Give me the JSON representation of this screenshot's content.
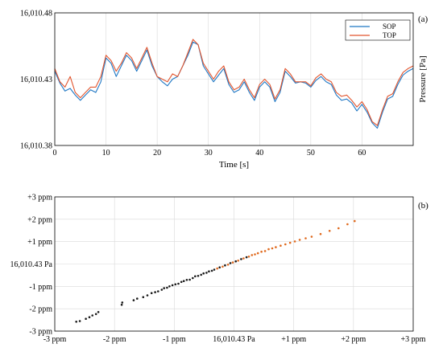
{
  "colors": {
    "sop": "#1f77c4",
    "top": "#e2552e",
    "scatter_light": "#e06a1e",
    "scatter_dark": "#1a1a1a",
    "grid": "#d9d9d9",
    "axis": "#000000"
  },
  "chart_data": [
    {
      "type": "line",
      "panel_label": "(a)",
      "xlabel": "Time [s]",
      "ylabel": "Pressure [Pa]",
      "xlim": [
        0,
        70
      ],
      "ylim": [
        16010.38,
        16010.48
      ],
      "x_tick_labels": [
        "0",
        "10",
        "20",
        "30",
        "40",
        "50",
        "60"
      ],
      "y_tick_labels": [
        "16,010.38",
        "16,010.43",
        "16,010.48"
      ],
      "grid": true,
      "legend": {
        "position": "top-right",
        "entries": [
          "SOP",
          "TOP"
        ]
      },
      "x": [
        0,
        1,
        2,
        3,
        4,
        5,
        6,
        7,
        8,
        9,
        10,
        11,
        12,
        13,
        14,
        15,
        16,
        17,
        18,
        19,
        20,
        21,
        22,
        23,
        24,
        25,
        26,
        27,
        28,
        29,
        30,
        31,
        32,
        33,
        34,
        35,
        36,
        37,
        38,
        39,
        40,
        41,
        42,
        43,
        44,
        45,
        46,
        47,
        48,
        49,
        50,
        51,
        52,
        53,
        54,
        55,
        56,
        57,
        58,
        59,
        60,
        61,
        62,
        63,
        64,
        65,
        66,
        67,
        68,
        69,
        70
      ],
      "series": [
        {
          "name": "SOP",
          "values": [
            16010.436,
            16010.427,
            16010.421,
            16010.423,
            16010.418,
            16010.414,
            16010.418,
            16010.422,
            16010.42,
            16010.428,
            16010.446,
            16010.442,
            16010.432,
            16010.44,
            16010.448,
            16010.444,
            16010.436,
            16010.444,
            16010.452,
            16010.44,
            16010.432,
            16010.428,
            16010.425,
            16010.43,
            16010.432,
            16010.44,
            16010.448,
            16010.458,
            16010.456,
            16010.44,
            16010.434,
            16010.428,
            16010.433,
            16010.438,
            16010.426,
            16010.42,
            16010.422,
            16010.428,
            16010.42,
            16010.414,
            16010.424,
            16010.428,
            16010.424,
            16010.413,
            16010.42,
            16010.436,
            16010.432,
            16010.427,
            16010.428,
            16010.427,
            16010.424,
            16010.429,
            16010.432,
            16010.428,
            16010.426,
            16010.418,
            16010.414,
            16010.415,
            16010.412,
            16010.406,
            16010.411,
            16010.405,
            16010.397,
            16010.393,
            16010.405,
            16010.415,
            16010.417,
            16010.426,
            16010.433,
            16010.436,
            16010.438
          ]
        },
        {
          "name": "TOP",
          "values": [
            16010.438,
            16010.428,
            16010.424,
            16010.432,
            16010.42,
            16010.416,
            16010.42,
            16010.424,
            16010.424,
            16010.432,
            16010.448,
            16010.444,
            16010.436,
            16010.442,
            16010.45,
            16010.446,
            16010.438,
            16010.446,
            16010.454,
            16010.442,
            16010.432,
            16010.43,
            16010.428,
            16010.434,
            16010.432,
            16010.44,
            16010.45,
            16010.46,
            16010.456,
            16010.442,
            16010.436,
            16010.43,
            16010.436,
            16010.44,
            16010.428,
            16010.422,
            16010.424,
            16010.43,
            16010.422,
            16010.416,
            16010.426,
            16010.43,
            16010.426,
            16010.415,
            16010.422,
            16010.438,
            16010.434,
            16010.428,
            16010.428,
            16010.428,
            16010.425,
            16010.431,
            16010.434,
            16010.43,
            16010.428,
            16010.42,
            16010.417,
            16010.418,
            16010.414,
            16010.409,
            16010.413,
            16010.407,
            16010.398,
            16010.395,
            16010.407,
            16010.417,
            16010.419,
            16010.428,
            16010.435,
            16010.438,
            16010.44
          ]
        }
      ]
    },
    {
      "type": "scatter",
      "panel_label": "(b)",
      "xlim": [
        -3,
        3
      ],
      "ylim": [
        -3,
        3
      ],
      "x_tick_labels": [
        "-3 ppm",
        "-2 ppm",
        "-1 ppm",
        "16,010.43 Pa",
        "+1 ppm",
        "+2 ppm",
        "+3 ppm"
      ],
      "y_tick_labels": [
        "-3 ppm",
        "-2 ppm",
        "-1 ppm",
        "16,010.43 Pa",
        "+1 ppm",
        "+2 ppm",
        "+3 ppm"
      ],
      "grid": true,
      "points": [
        [
          -2.64,
          -2.58
        ],
        [
          -2.58,
          -2.55
        ],
        [
          -2.48,
          -2.45
        ],
        [
          -2.42,
          -2.38
        ],
        [
          -2.37,
          -2.3
        ],
        [
          -2.31,
          -2.24
        ],
        [
          -2.27,
          -2.15
        ],
        [
          -1.88,
          -1.82
        ],
        [
          -1.87,
          -1.72
        ],
        [
          -1.68,
          -1.62
        ],
        [
          -1.62,
          -1.55
        ],
        [
          -1.52,
          -1.48
        ],
        [
          -1.45,
          -1.4
        ],
        [
          -1.38,
          -1.3
        ],
        [
          -1.32,
          -1.26
        ],
        [
          -1.27,
          -1.22
        ],
        [
          -1.21,
          -1.15
        ],
        [
          -1.17,
          -1.08
        ],
        [
          -1.12,
          -1.06
        ],
        [
          -1.08,
          -1.0
        ],
        [
          -1.03,
          -0.95
        ],
        [
          -0.98,
          -0.91
        ],
        [
          -0.93,
          -0.88
        ],
        [
          -0.88,
          -0.8
        ],
        [
          -0.84,
          -0.76
        ],
        [
          -0.79,
          -0.71
        ],
        [
          -0.74,
          -0.7
        ],
        [
          -0.69,
          -0.63
        ],
        [
          -0.65,
          -0.55
        ],
        [
          -0.6,
          -0.53
        ],
        [
          -0.55,
          -0.48
        ],
        [
          -0.51,
          -0.42
        ],
        [
          -0.46,
          -0.39
        ],
        [
          -0.42,
          -0.33
        ],
        [
          -0.37,
          -0.3
        ],
        [
          -0.33,
          -0.25
        ],
        [
          -0.28,
          -0.2
        ],
        [
          -0.24,
          -0.15
        ],
        [
          -0.19,
          -0.12
        ],
        [
          -0.15,
          -0.06
        ],
        [
          -0.1,
          -0.03
        ],
        [
          -0.06,
          0.04
        ],
        [
          -0.02,
          0.07
        ],
        [
          0.03,
          0.12
        ],
        [
          0.07,
          0.15
        ],
        [
          0.12,
          0.22
        ],
        [
          0.16,
          0.25
        ],
        [
          0.21,
          0.3
        ],
        [
          0.25,
          0.33
        ],
        [
          0.3,
          0.4
        ],
        [
          0.35,
          0.43
        ],
        [
          0.4,
          0.48
        ],
        [
          0.46,
          0.55
        ],
        [
          0.52,
          0.58
        ],
        [
          0.58,
          0.66
        ],
        [
          0.64,
          0.7
        ],
        [
          0.7,
          0.75
        ],
        [
          0.78,
          0.82
        ],
        [
          0.86,
          0.88
        ],
        [
          0.94,
          0.95
        ],
        [
          1.02,
          1.01
        ],
        [
          1.1,
          1.08
        ],
        [
          1.2,
          1.15
        ],
        [
          1.3,
          1.22
        ],
        [
          1.45,
          1.34
        ],
        [
          1.6,
          1.48
        ],
        [
          1.75,
          1.6
        ],
        [
          1.9,
          1.78
        ],
        [
          2.02,
          1.92
        ]
      ]
    }
  ]
}
